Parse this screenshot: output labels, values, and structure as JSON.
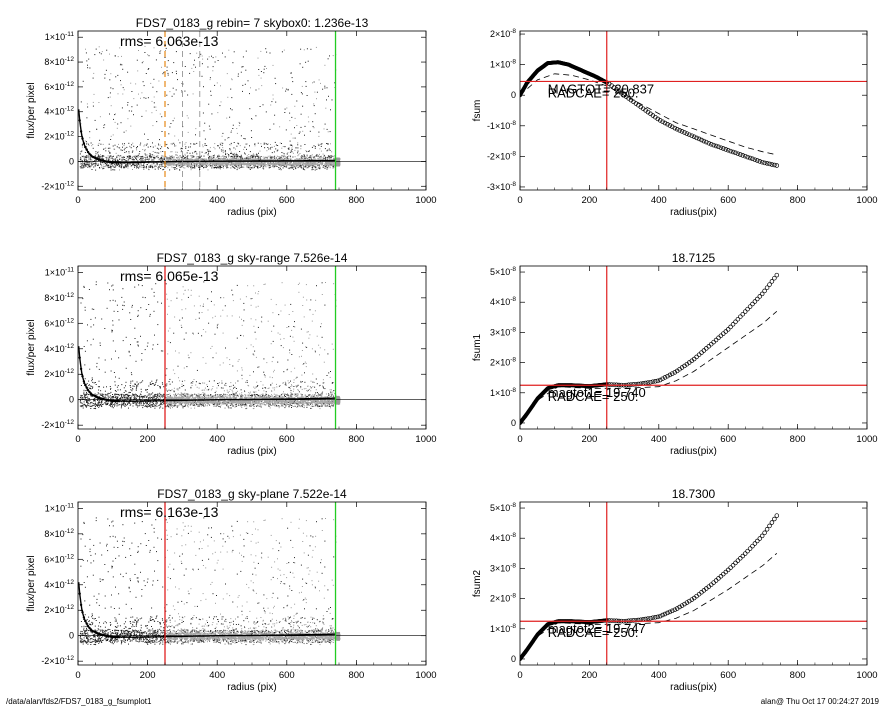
{
  "footer": {
    "path": "/data/alan/fds2/FDS7_0183_g_fsumplot1",
    "stamp": "alan@  Thu Oct 17 00:24:27 2019"
  },
  "chart_data": [
    {
      "panel": "flux-1",
      "type": "scatter",
      "title": "FDS7_0183_g rebin= 7    skybox0:  1.236e-13",
      "rms_label": "rms= 6.063e-13",
      "xlabel": "radius (pix)",
      "ylabel": "flux/per pixel",
      "xlim": [
        0,
        1000
      ],
      "ylim": [
        -2.3e-12,
        1.05e-11
      ],
      "xticks": [
        "0",
        "200",
        "400",
        "600",
        "800",
        "1000"
      ],
      "yticks": [
        {
          "v": -2e-12,
          "mant": "-2×10",
          "exp": "-12"
        },
        {
          "v": 0,
          "mant": "0",
          "exp": ""
        },
        {
          "v": 2e-12,
          "mant": "2×10",
          "exp": "-12"
        },
        {
          "v": 4e-12,
          "mant": "4×10",
          "exp": "-12"
        },
        {
          "v": 6e-12,
          "mant": "6×10",
          "exp": "-12"
        },
        {
          "v": 8e-12,
          "mant": "8×10",
          "exp": "-12"
        },
        {
          "v": 1e-11,
          "mant": "1×10",
          "exp": "-11"
        }
      ],
      "profile": {
        "x": [
          2,
          5,
          10,
          15,
          20,
          30,
          40,
          60,
          80,
          100,
          150,
          200,
          300,
          400,
          500,
          600,
          700,
          740
        ],
        "y": [
          4.2e-12,
          3.3e-12,
          2.2e-12,
          1.6e-12,
          1.2e-12,
          7e-13,
          4e-13,
          1.5e-13,
          0,
          -8e-14,
          -1e-13,
          -6e-14,
          0,
          2e-14,
          3e-14,
          5e-14,
          6e-14,
          6e-14
        ]
      },
      "vlines": [
        {
          "x": 250,
          "color": "#e8922a",
          "style": "dashed"
        },
        {
          "x": 300,
          "color": "#888888",
          "style": "dashed"
        },
        {
          "x": 350,
          "color": "#888888",
          "style": "dashed"
        },
        {
          "x": 740,
          "color": "#22cc22",
          "style": "solid"
        }
      ],
      "grey_cut": 0
    },
    {
      "panel": "fsum",
      "type": "line",
      "title": "",
      "ylabel": "fsum",
      "xlabel": "radius(pix)",
      "xlim": [
        0,
        1000
      ],
      "ylim": [
        -3.1e-08,
        2.1e-08
      ],
      "xticks": [
        "0",
        "200",
        "400",
        "600",
        "800",
        "1000"
      ],
      "yticks": [
        {
          "v": -3e-08,
          "mant": "-3×10",
          "exp": "-8"
        },
        {
          "v": -2e-08,
          "mant": "-2×10",
          "exp": "-8"
        },
        {
          "v": -1e-08,
          "mant": "-1×10",
          "exp": "-8"
        },
        {
          "v": 0,
          "mant": "0",
          "exp": ""
        },
        {
          "v": 1e-08,
          "mant": "1×10",
          "exp": "-8"
        },
        {
          "v": 2e-08,
          "mant": "2×10",
          "exp": "-8"
        }
      ],
      "curve": {
        "x": [
          0,
          20,
          50,
          80,
          110,
          140,
          180,
          220,
          260,
          300,
          350,
          400,
          450,
          500,
          550,
          600,
          650,
          700,
          740
        ],
        "y": [
          0,
          4e-09,
          8e-09,
          1.05e-08,
          1.08e-08,
          1e-08,
          8e-09,
          6e-09,
          3.5e-09,
          0,
          -4e-09,
          -8e-09,
          -1.1e-08,
          -1.35e-08,
          -1.6e-08,
          -1.8e-08,
          -2e-08,
          -2.2e-08,
          -2.3e-08
        ]
      },
      "dashed": {
        "x": [
          0,
          50,
          100,
          150,
          200,
          250,
          300,
          350,
          400,
          450,
          500,
          550,
          600,
          650,
          700,
          740
        ],
        "y": [
          0,
          5e-09,
          7e-09,
          6.5e-09,
          5e-09,
          3e-09,
          0,
          -3e-09,
          -6e-09,
          -9e-09,
          -1.1e-08,
          -1.3e-08,
          -1.5e-08,
          -1.7e-08,
          -1.85e-08,
          -1.95e-08
        ]
      },
      "hline": 4.5e-09,
      "vline": 250,
      "text_a": "MAGTOT= 20.837",
      "text_b": "RADCAE= 250."
    },
    {
      "panel": "flux-2",
      "type": "scatter",
      "title": "FDS7_0183_g sky-range  7.526e-14",
      "rms_label": "rms= 6.065e-13",
      "xlabel": "radius (pix)",
      "ylabel": "flux/per pixel",
      "xlim": [
        0,
        1000
      ],
      "ylim": [
        -2.3e-12,
        1.05e-11
      ],
      "xticks": [
        "0",
        "200",
        "400",
        "600",
        "800",
        "1000"
      ],
      "yticks": [
        {
          "v": -2e-12,
          "mant": "-2×10",
          "exp": "-12"
        },
        {
          "v": 0,
          "mant": "0",
          "exp": ""
        },
        {
          "v": 2e-12,
          "mant": "2×10",
          "exp": "-12"
        },
        {
          "v": 4e-12,
          "mant": "4×10",
          "exp": "-12"
        },
        {
          "v": 6e-12,
          "mant": "6×10",
          "exp": "-12"
        },
        {
          "v": 8e-12,
          "mant": "8×10",
          "exp": "-12"
        },
        {
          "v": 1e-11,
          "mant": "1×10",
          "exp": "-11"
        }
      ],
      "profile": {
        "x": [
          2,
          5,
          10,
          15,
          20,
          30,
          40,
          60,
          80,
          100,
          150,
          200,
          300,
          400,
          500,
          600,
          700,
          740
        ],
        "y": [
          4.2e-12,
          3.3e-12,
          2.2e-12,
          1.6e-12,
          1.2e-12,
          7e-13,
          4e-13,
          1.5e-13,
          0,
          -1e-13,
          -1.2e-13,
          -1e-13,
          -5e-14,
          0,
          2e-14,
          5e-14,
          1e-13,
          1.2e-13
        ]
      },
      "vlines": [
        {
          "x": 250,
          "color": "#e02020",
          "style": "solid"
        },
        {
          "x": 740,
          "color": "#22cc22",
          "style": "solid"
        }
      ],
      "grey_cut": 250
    },
    {
      "panel": "fsum1",
      "type": "line",
      "title": "18.7125",
      "ylabel": "fsum1",
      "xlabel": "radius(pix)",
      "xlim": [
        0,
        1000
      ],
      "ylim": [
        -2e-09,
        5.2e-08
      ],
      "xticks": [
        "0",
        "200",
        "400",
        "600",
        "800",
        "1000"
      ],
      "yticks": [
        {
          "v": 0,
          "mant": "0",
          "exp": ""
        },
        {
          "v": 1e-08,
          "mant": "1×10",
          "exp": "-8"
        },
        {
          "v": 2e-08,
          "mant": "2×10",
          "exp": "-8"
        },
        {
          "v": 3e-08,
          "mant": "3×10",
          "exp": "-8"
        },
        {
          "v": 4e-08,
          "mant": "4×10",
          "exp": "-8"
        },
        {
          "v": 5e-08,
          "mant": "5×10",
          "exp": "-8"
        }
      ],
      "curve": {
        "x": [
          0,
          20,
          50,
          80,
          110,
          150,
          200,
          250,
          300,
          350,
          400,
          450,
          500,
          550,
          600,
          650,
          700,
          740
        ],
        "y": [
          0,
          3e-09,
          8e-09,
          1.15e-08,
          1.25e-08,
          1.25e-08,
          1.22e-08,
          1.28e-08,
          1.25e-08,
          1.3e-08,
          1.4e-08,
          1.7e-08,
          2.1e-08,
          2.6e-08,
          3.1e-08,
          3.7e-08,
          4.3e-08,
          4.9e-08
        ]
      },
      "dashed": {
        "x": [
          0,
          50,
          110,
          200,
          300,
          400,
          450,
          500,
          550,
          600,
          650,
          700,
          740
        ],
        "y": [
          0,
          7.5e-09,
          1.2e-08,
          1.15e-08,
          1.15e-08,
          1.2e-08,
          1.4e-08,
          1.7e-08,
          2.1e-08,
          2.5e-08,
          2.9e-08,
          3.3e-08,
          3.7e-08
        ]
      },
      "hline": 1.25e-08,
      "vline": 250,
      "text_a": "magtot1= 19.740",
      "text_b": "RADCAE= 250."
    },
    {
      "panel": "flux-3",
      "type": "scatter",
      "title": "FDS7_0183_g sky-plane  7.522e-14",
      "rms_label": "rms= 6.163e-13",
      "xlabel": "radius (pix)",
      "ylabel": "flux/per pixel",
      "xlim": [
        0,
        1000
      ],
      "ylim": [
        -2.3e-12,
        1.05e-11
      ],
      "xticks": [
        "0",
        "200",
        "400",
        "600",
        "800",
        "1000"
      ],
      "yticks": [
        {
          "v": -2e-12,
          "mant": "-2×10",
          "exp": "-12"
        },
        {
          "v": 0,
          "mant": "0",
          "exp": ""
        },
        {
          "v": 2e-12,
          "mant": "2×10",
          "exp": "-12"
        },
        {
          "v": 4e-12,
          "mant": "4×10",
          "exp": "-12"
        },
        {
          "v": 6e-12,
          "mant": "6×10",
          "exp": "-12"
        },
        {
          "v": 8e-12,
          "mant": "8×10",
          "exp": "-12"
        },
        {
          "v": 1e-11,
          "mant": "1×10",
          "exp": "-11"
        }
      ],
      "profile": {
        "x": [
          2,
          5,
          10,
          15,
          20,
          30,
          40,
          60,
          80,
          100,
          150,
          200,
          300,
          400,
          500,
          600,
          700,
          740
        ],
        "y": [
          4.2e-12,
          3.3e-12,
          2.2e-12,
          1.6e-12,
          1.2e-12,
          7e-13,
          4e-13,
          1.5e-13,
          0,
          -1e-13,
          -1.2e-13,
          -1e-13,
          -5e-14,
          0,
          2e-14,
          5e-14,
          1e-13,
          1.2e-13
        ]
      },
      "vlines": [
        {
          "x": 250,
          "color": "#e02020",
          "style": "solid"
        },
        {
          "x": 740,
          "color": "#22cc22",
          "style": "solid"
        }
      ],
      "grey_cut": 250
    },
    {
      "panel": "fsum2",
      "type": "line",
      "title": "18.7300",
      "ylabel": "fsum2",
      "xlabel": "radius(pix)",
      "xlim": [
        0,
        1000
      ],
      "ylim": [
        -2e-09,
        5.2e-08
      ],
      "xticks": [
        "0",
        "200",
        "400",
        "600",
        "800",
        "1000"
      ],
      "yticks": [
        {
          "v": 0,
          "mant": "0",
          "exp": ""
        },
        {
          "v": 1e-08,
          "mant": "1×10",
          "exp": "-8"
        },
        {
          "v": 2e-08,
          "mant": "2×10",
          "exp": "-8"
        },
        {
          "v": 3e-08,
          "mant": "3×10",
          "exp": "-8"
        },
        {
          "v": 4e-08,
          "mant": "4×10",
          "exp": "-8"
        },
        {
          "v": 5e-08,
          "mant": "5×10",
          "exp": "-8"
        }
      ],
      "curve": {
        "x": [
          0,
          20,
          50,
          80,
          110,
          150,
          200,
          250,
          300,
          350,
          400,
          450,
          500,
          550,
          600,
          650,
          700,
          740
        ],
        "y": [
          0,
          3e-09,
          8e-09,
          1.15e-08,
          1.25e-08,
          1.25e-08,
          1.22e-08,
          1.28e-08,
          1.25e-08,
          1.3e-08,
          1.4e-08,
          1.65e-08,
          2e-08,
          2.45e-08,
          2.95e-08,
          3.5e-08,
          4.1e-08,
          4.75e-08
        ]
      },
      "dashed": {
        "x": [
          0,
          50,
          110,
          200,
          300,
          400,
          450,
          500,
          550,
          600,
          650,
          700,
          740
        ],
        "y": [
          0,
          7.5e-09,
          1.2e-08,
          1.15e-08,
          1.15e-08,
          1.2e-08,
          1.35e-08,
          1.6e-08,
          1.95e-08,
          2.3e-08,
          2.7e-08,
          3.1e-08,
          3.5e-08
        ]
      },
      "hline": 1.25e-08,
      "vline": 250,
      "text_a": "magtot2= 19.747",
      "text_b": "RADCAE= 250."
    }
  ]
}
